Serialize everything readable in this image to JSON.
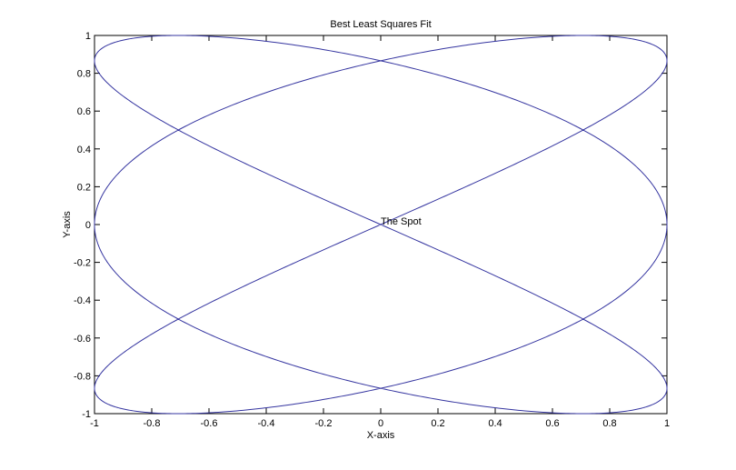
{
  "chart_data": {
    "type": "line",
    "title": "Best Least Squares Fit",
    "xlabel": "X-axis",
    "ylabel": "Y-axis",
    "xlim": [
      -1,
      1
    ],
    "ylim": [
      -1,
      1
    ],
    "xticks": [
      "-1",
      "-0.8",
      "-0.6",
      "-0.4",
      "-0.2",
      "0",
      "0.2",
      "0.4",
      "0.6",
      "0.8",
      "1"
    ],
    "yticks": [
      "-1",
      "-0.8",
      "-0.6",
      "-0.4",
      "-0.2",
      "0",
      "0.2",
      "0.4",
      "0.6",
      "0.8",
      "1"
    ],
    "grid": false,
    "series": [
      {
        "curve": "parametric",
        "x_expr": "sin(3t)",
        "y_expr": "sin(2t)",
        "t_range": [
          0,
          6.2832
        ],
        "color": "#3535a0"
      }
    ],
    "annotations": [
      {
        "text": "The Spot",
        "x": 0,
        "y": 0
      }
    ]
  }
}
